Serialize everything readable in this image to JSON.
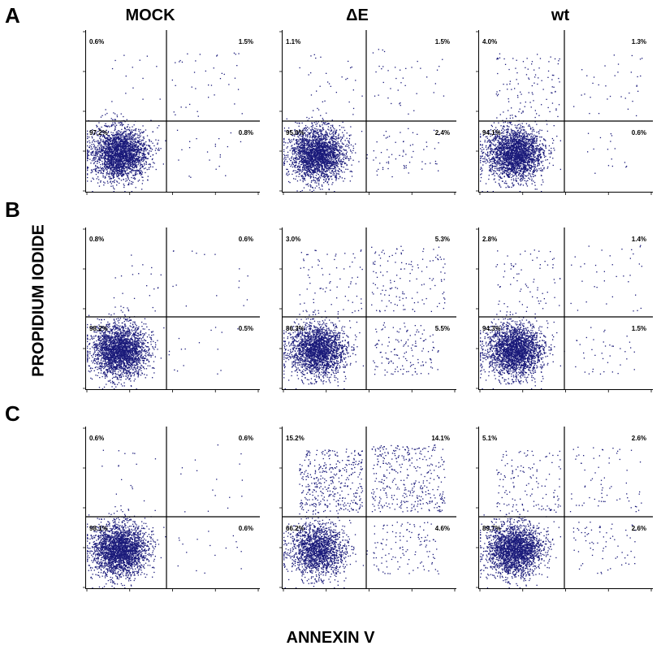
{
  "row_labels": [
    "A",
    "B",
    "C"
  ],
  "column_labels": [
    "MOCK",
    "ΔE",
    "wt"
  ],
  "y_axis_title": "PROPIDIUM IODIDE",
  "x_axis_title": "ANNEXIN V",
  "colors": {
    "dots": "#1a1a7a",
    "axis": "#000000"
  },
  "chart_data": [
    {
      "type": "scatter",
      "row": "A",
      "column": "MOCK",
      "quadrants": {
        "upper_left": "0.6%",
        "upper_right": "1.5%",
        "lower_left": "97.2%",
        "lower_right": "0.8%"
      }
    },
    {
      "type": "scatter",
      "row": "A",
      "column": "ΔE",
      "quadrants": {
        "upper_left": "1.1%",
        "upper_right": "1.5%",
        "lower_left": "95.0%",
        "lower_right": "2.4%"
      }
    },
    {
      "type": "scatter",
      "row": "A",
      "column": "wt",
      "quadrants": {
        "upper_left": "4.0%",
        "upper_right": "1.3%",
        "lower_left": "94.1%",
        "lower_right": "0.6%"
      }
    },
    {
      "type": "scatter",
      "row": "B",
      "column": "MOCK",
      "quadrants": {
        "upper_left": "0.8%",
        "upper_right": "0.6%",
        "lower_left": "98.2%",
        "lower_right": "0.5%"
      }
    },
    {
      "type": "scatter",
      "row": "B",
      "column": "ΔE",
      "quadrants": {
        "upper_left": "3.0%",
        "upper_right": "5.3%",
        "lower_left": "86.3%",
        "lower_right": "5.5%"
      }
    },
    {
      "type": "scatter",
      "row": "B",
      "column": "wt",
      "quadrants": {
        "upper_left": "2.8%",
        "upper_right": "1.4%",
        "lower_left": "94.3%",
        "lower_right": "1.5%"
      }
    },
    {
      "type": "scatter",
      "row": "C",
      "column": "MOCK",
      "quadrants": {
        "upper_left": "0.6%",
        "upper_right": "0.6%",
        "lower_left": "98.1%",
        "lower_right": "0.6%"
      }
    },
    {
      "type": "scatter",
      "row": "C",
      "column": "ΔE",
      "quadrants": {
        "upper_left": "15.2%",
        "upper_right": "14.1%",
        "lower_left": "66.2%",
        "lower_right": "4.6%"
      }
    },
    {
      "type": "scatter",
      "row": "C",
      "column": "wt",
      "quadrants": {
        "upper_left": "5.1%",
        "upper_right": "2.6%",
        "lower_left": "89.7%",
        "lower_right": "2.6%"
      }
    }
  ]
}
